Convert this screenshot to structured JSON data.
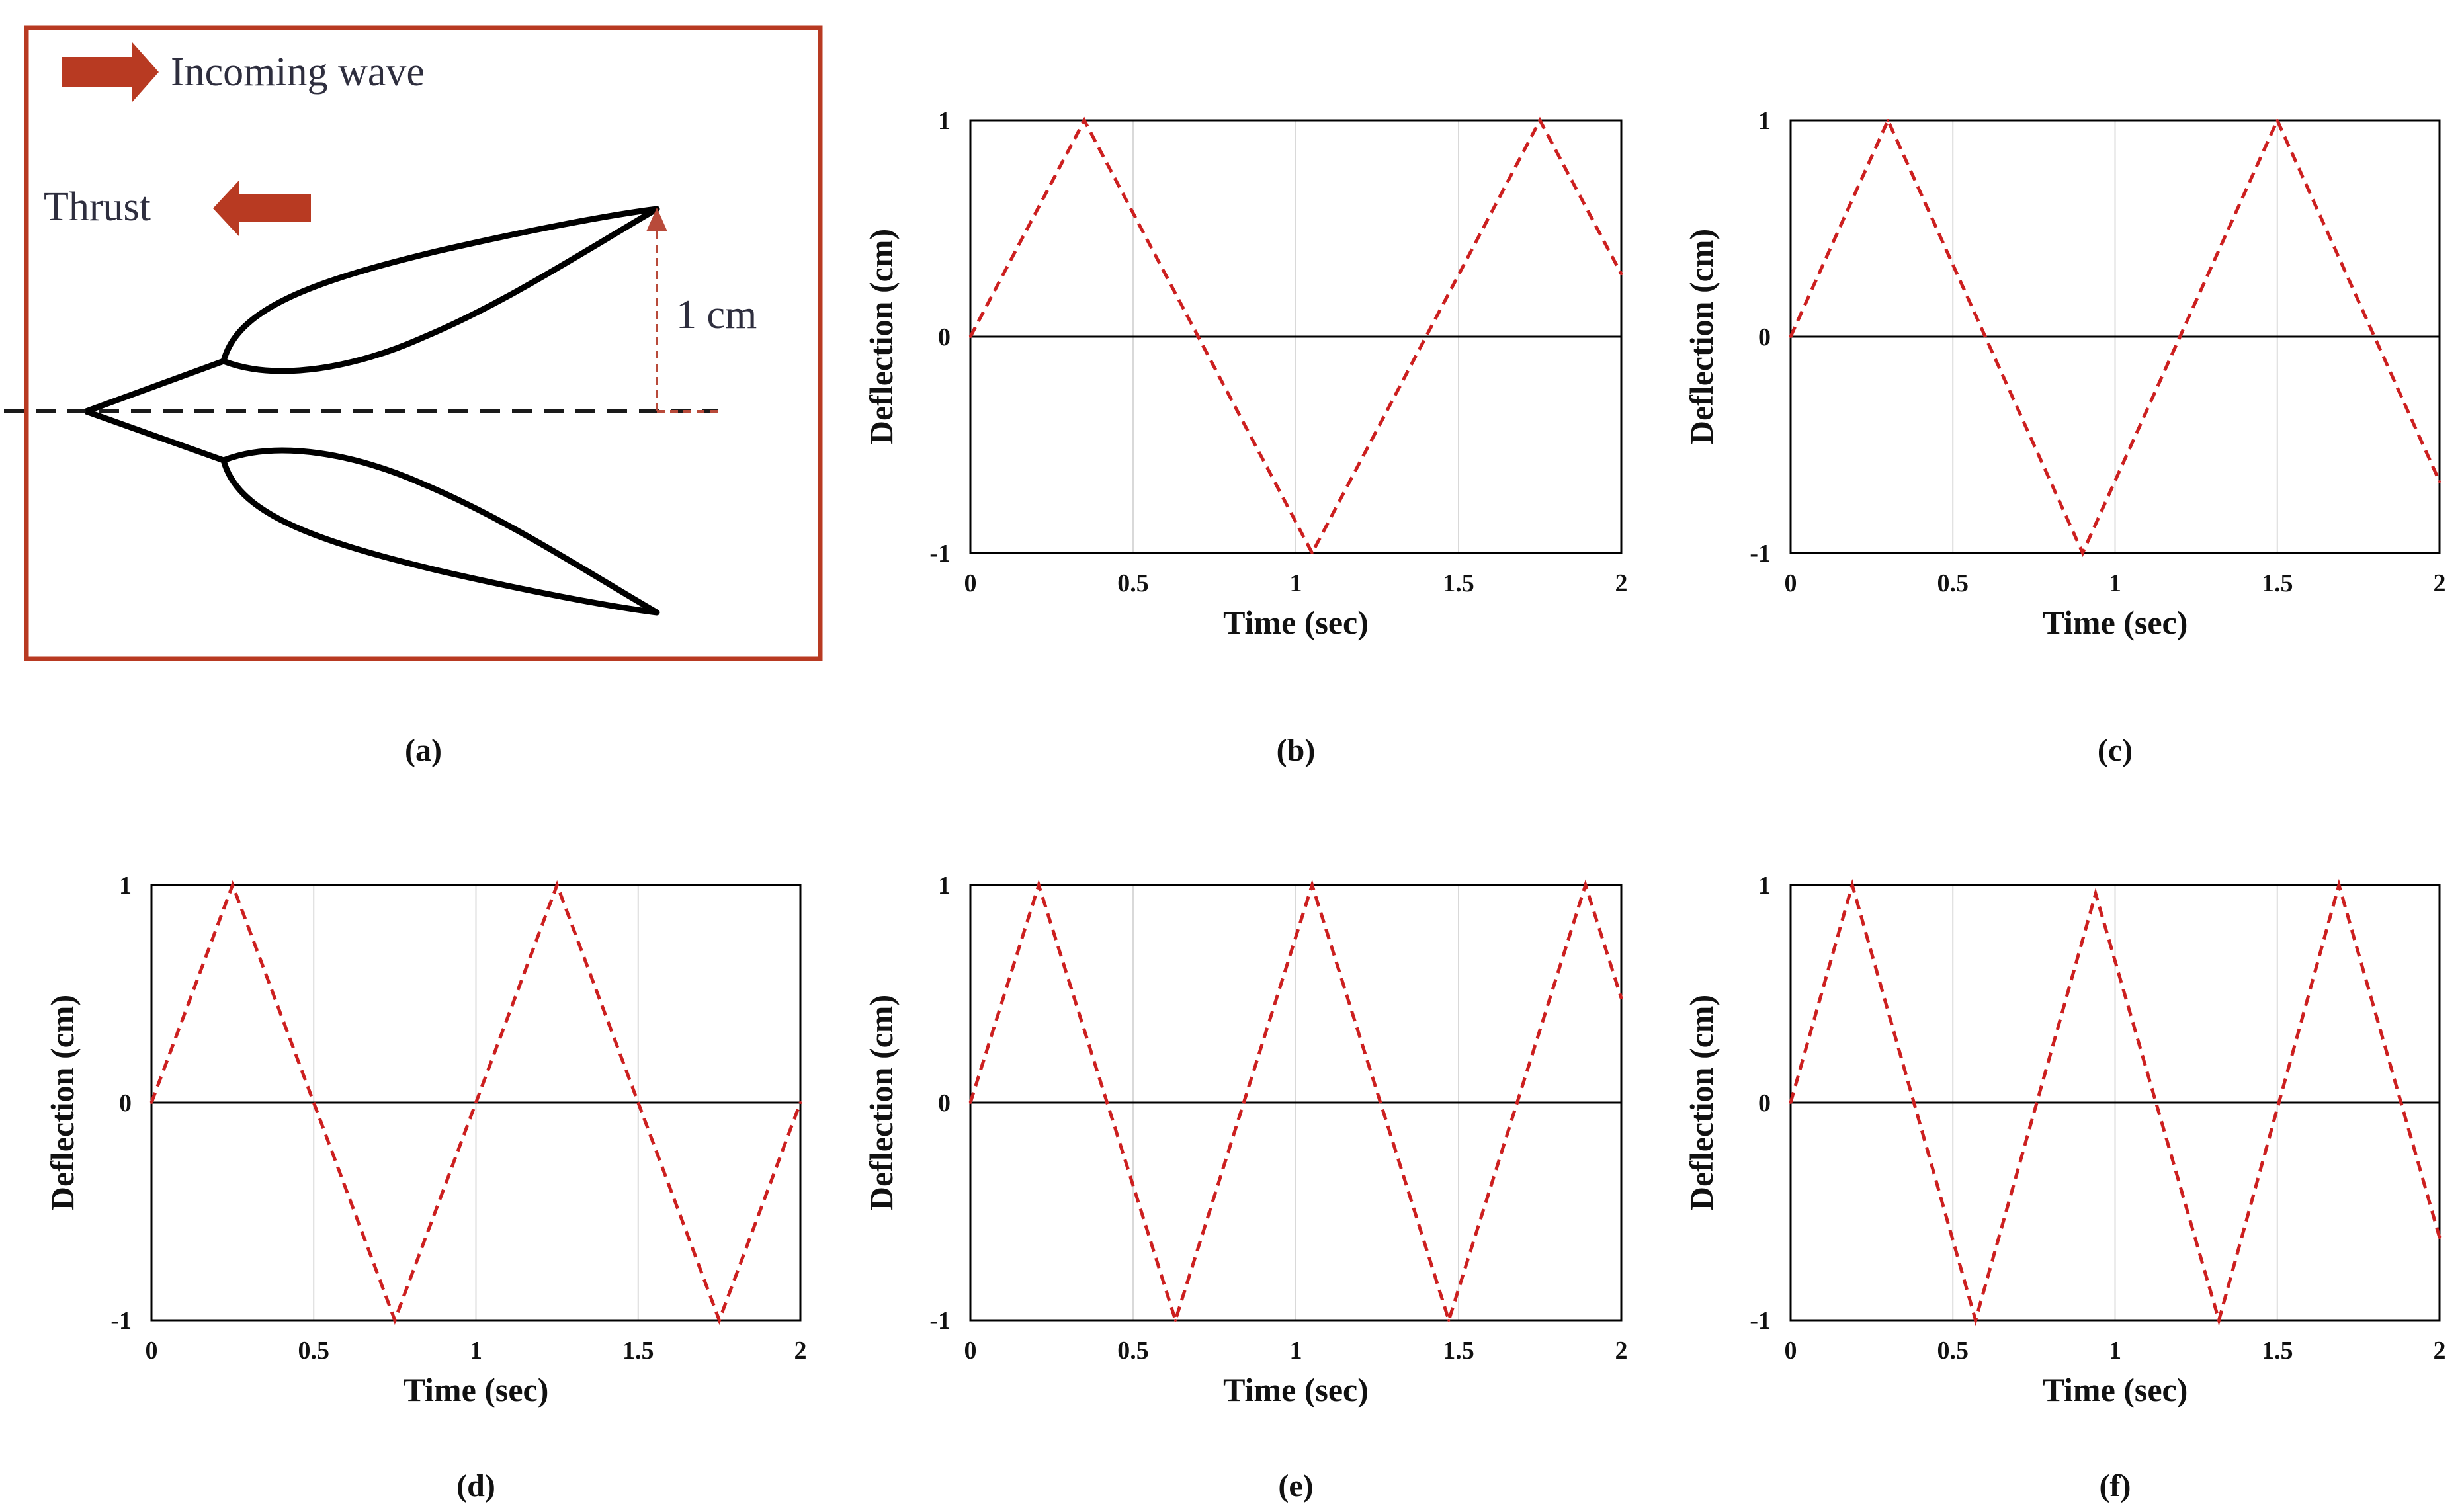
{
  "colors": {
    "series": "#cc1f1f",
    "arrow": "#b83a22",
    "frame": "#b83a22",
    "dim": "#b84a3a",
    "axis": "#000000",
    "grid": "#d9d9d9"
  },
  "schematic": {
    "caption": "(a)",
    "incoming_label": "Incoming wave",
    "thrust_label": "Thrust",
    "dimension_label": "1 cm"
  },
  "chart_data": [
    {
      "panel": "b",
      "caption": "(b)",
      "type": "line",
      "xlabel": "Time (sec)",
      "ylabel": "Deflection (cm)",
      "xlim": [
        0,
        2
      ],
      "ylim": [
        -1,
        1
      ],
      "xticks": [
        "0",
        "0.5",
        "1",
        "1.5",
        "2"
      ],
      "yticks": [
        "-1",
        "0",
        "1"
      ],
      "grid_x": true,
      "line_style": "dashed",
      "series": [
        {
          "x": [
            0,
            0.35,
            1.05,
            1.75,
            2
          ],
          "y": [
            0,
            1,
            -1,
            1,
            0.29
          ]
        }
      ]
    },
    {
      "panel": "c",
      "caption": "(c)",
      "type": "line",
      "xlabel": "Time (sec)",
      "ylabel": "Deflection (cm)",
      "xlim": [
        0,
        2
      ],
      "ylim": [
        -1,
        1
      ],
      "xticks": [
        "0",
        "0.5",
        "1",
        "1.5",
        "2"
      ],
      "yticks": [
        "-1",
        "0",
        "1"
      ],
      "grid_x": true,
      "line_style": "dashed",
      "series": [
        {
          "x": [
            0,
            0.3,
            0.9,
            1.5,
            2
          ],
          "y": [
            0,
            1,
            -1,
            1,
            -0.67
          ]
        }
      ]
    },
    {
      "panel": "d",
      "caption": "(d)",
      "type": "line",
      "xlabel": "Time (sec)",
      "ylabel": "Deflection (cm)",
      "xlim": [
        0,
        2
      ],
      "ylim": [
        -1,
        1
      ],
      "xticks": [
        "0",
        "0.5",
        "1",
        "1.5",
        "2"
      ],
      "yticks": [
        "-1",
        "0",
        "1"
      ],
      "grid_x": true,
      "line_style": "dashed",
      "series": [
        {
          "x": [
            0,
            0.25,
            0.75,
            1.25,
            1.75,
            2
          ],
          "y": [
            0,
            1,
            -1,
            1,
            -1,
            0
          ]
        }
      ]
    },
    {
      "panel": "e",
      "caption": "(e)",
      "type": "line",
      "xlabel": "Time (sec)",
      "ylabel": "Deflection (cm)",
      "xlim": [
        0,
        2
      ],
      "ylim": [
        -1,
        1
      ],
      "xticks": [
        "0",
        "0.5",
        "1",
        "1.5",
        "2"
      ],
      "yticks": [
        "-1",
        "0",
        "1"
      ],
      "grid_x": true,
      "line_style": "dashed",
      "series": [
        {
          "x": [
            0,
            0.21,
            0.63,
            1.05,
            1.47,
            1.89,
            2
          ],
          "y": [
            0,
            1,
            -1,
            1,
            -1,
            1,
            0.48
          ]
        }
      ]
    },
    {
      "panel": "f",
      "caption": "(f)",
      "type": "line",
      "xlabel": "Time (sec)",
      "ylabel": "Deflection (cm)",
      "xlim": [
        0,
        2
      ],
      "ylim": [
        -1,
        1
      ],
      "xticks": [
        "0",
        "0.5",
        "1",
        "1.5",
        "2"
      ],
      "yticks": [
        "-1",
        "0",
        "1"
      ],
      "grid_x": true,
      "line_style": "dashed",
      "series": [
        {
          "x": [
            0,
            0.19,
            0.57,
            0.94,
            1.32,
            1.69,
            2
          ],
          "y": [
            0,
            1,
            -1,
            0.96,
            -1,
            1,
            -0.62
          ]
        }
      ]
    }
  ]
}
